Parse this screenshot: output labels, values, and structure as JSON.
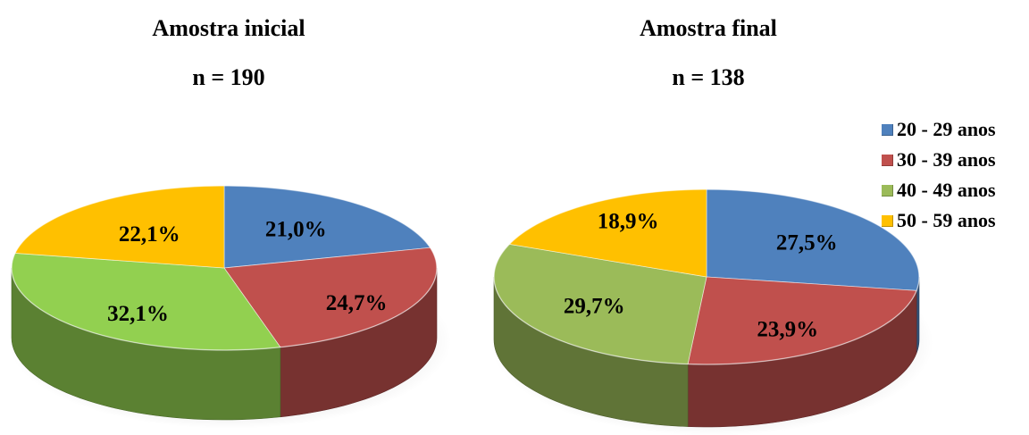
{
  "chart_data": [
    {
      "type": "pie",
      "title": "Amostra inicial",
      "subtitle": "n = 190",
      "categories": [
        "20 - 29 anos",
        "30 - 39 anos",
        "40 - 49 anos",
        "50 - 59 anos"
      ],
      "values": [
        21.0,
        24.7,
        32.1,
        22.1
      ],
      "labels": [
        "21,0%",
        "24,7%",
        "32,1%",
        "22,1%"
      ]
    },
    {
      "type": "pie",
      "title": "Amostra final",
      "subtitle": "n = 138",
      "categories": [
        "20 - 29 anos",
        "30 - 39 anos",
        "40 - 49 anos",
        "50 - 59 anos"
      ],
      "values": [
        27.5,
        23.9,
        29.7,
        18.9
      ],
      "labels": [
        "27,5%",
        "23,9%",
        "29,7%",
        "18,9%"
      ]
    }
  ],
  "legend": {
    "placement": "right",
    "items": [
      "20 - 29 anos",
      "30 - 39 anos",
      "40 - 49 anos",
      "50 - 59 anos"
    ]
  },
  "colors": {
    "chart0": [
      "#4f81bd",
      "#c0504d",
      "#92d050",
      "#ffc000"
    ],
    "chart1": [
      "#4f81bd",
      "#c0504d",
      "#9bbb59",
      "#ffc000"
    ]
  }
}
